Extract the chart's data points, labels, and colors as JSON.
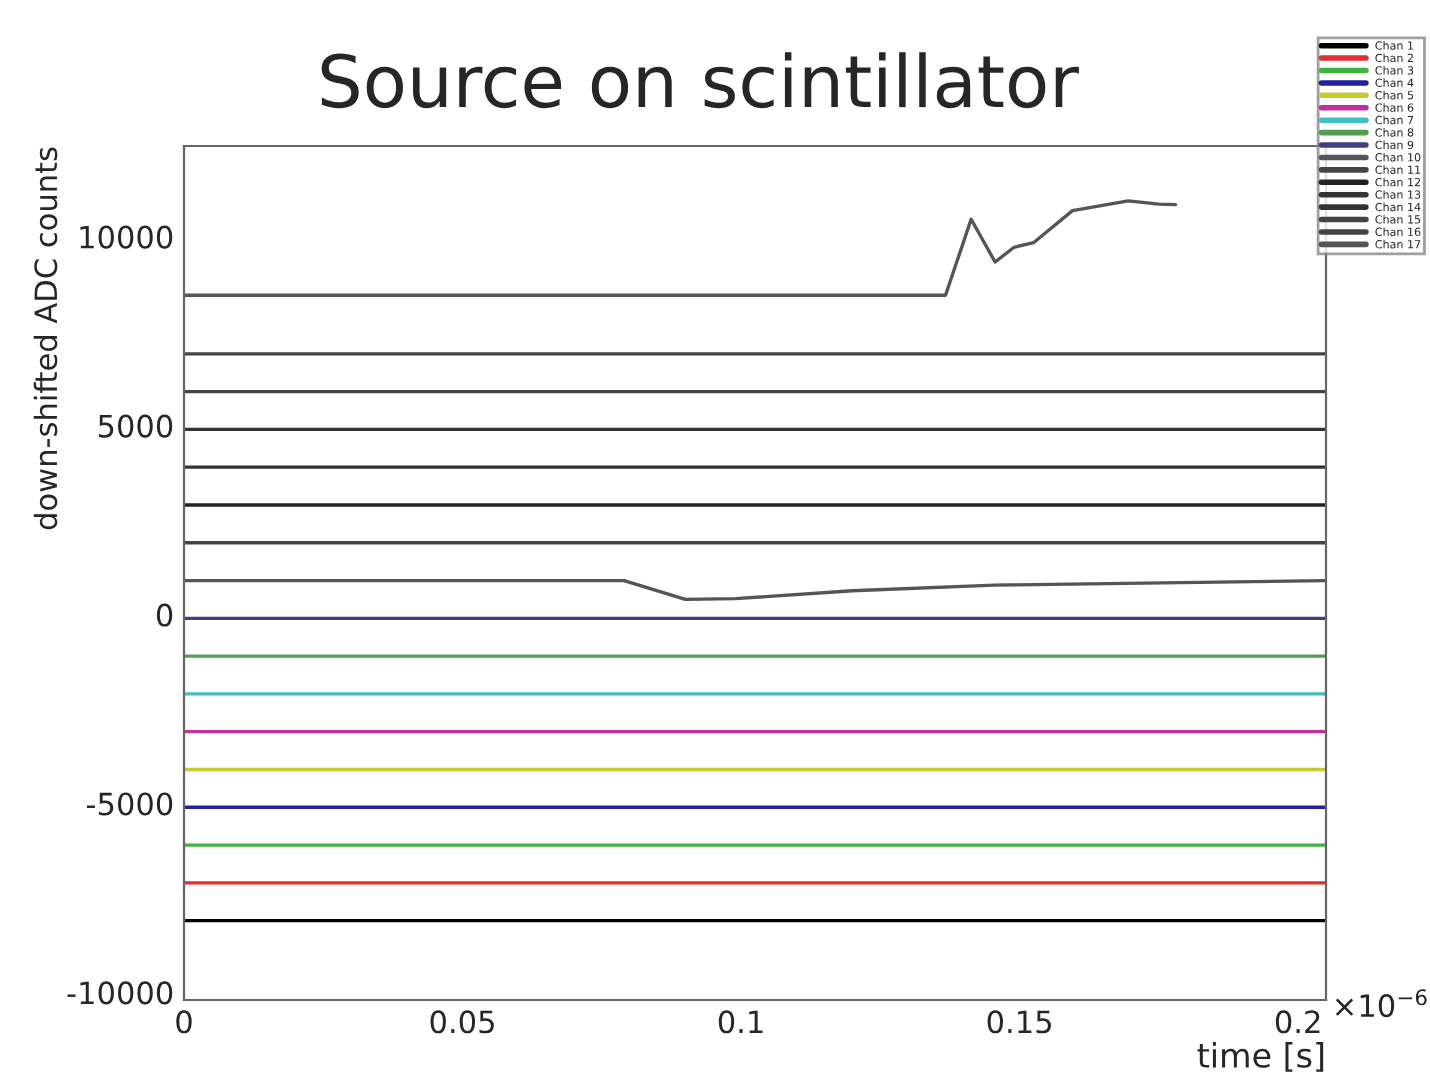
{
  "chart_data": {
    "type": "line",
    "title": "Source on scintillator",
    "xlabel": "time [s]",
    "ylabel": "down-shifted ADC counts",
    "annotations": [
      "×10$^{−6}$"
    ],
    "xlim": [
      0,
      0.205
    ],
    "xticks": [
      0,
      0.05,
      0.1,
      0.15,
      0.2
    ],
    "ylim": [
      -10200,
      12400
    ],
    "yticks": [
      -10000,
      -5000,
      0,
      5000,
      10000
    ],
    "grid": false,
    "legend": "top right",
    "marker": "none",
    "line_style": "solid",
    "series": [
      {
        "name": "Chan 1",
        "color": "#000000",
        "x": [
          0,
          0.205
        ],
        "values": [
          -8100,
          -8100
        ]
      },
      {
        "name": "Chan 2",
        "color": "#e03030",
        "x": [
          0,
          0.205
        ],
        "values": [
          -7100,
          -7100
        ]
      },
      {
        "name": "Chan 3",
        "color": "#40b040",
        "x": [
          0,
          0.205
        ],
        "values": [
          -6100,
          -6100
        ]
      },
      {
        "name": "Chan 4",
        "color": "#2020a0",
        "x": [
          0,
          0.205
        ],
        "values": [
          -5100,
          -5100
        ]
      },
      {
        "name": "Chan 5",
        "color": "#c8c830",
        "x": [
          0,
          0.205
        ],
        "values": [
          -4100,
          -4100
        ]
      },
      {
        "name": "Chan 6",
        "color": "#c030a0",
        "x": [
          0,
          0.205
        ],
        "values": [
          -3100,
          -3100
        ]
      },
      {
        "name": "Chan 7",
        "color": "#40c0c0",
        "x": [
          0,
          0.205
        ],
        "values": [
          -2100,
          -2100
        ]
      },
      {
        "name": "Chan 8",
        "color": "#50a050",
        "x": [
          0,
          0.205
        ],
        "values": [
          -1100,
          -1100
        ]
      },
      {
        "name": "Chan 9",
        "color": "#404080",
        "x": [
          0,
          0.205
        ],
        "values": [
          -100,
          -100
        ]
      },
      {
        "name": "Chan 10",
        "color": "#555555",
        "x": [
          0,
          0.079,
          0.09,
          0.099,
          0.12,
          0.1455,
          0.205
        ],
        "values": [
          900,
          900,
          400,
          420,
          630,
          780,
          900
        ]
      },
      {
        "name": "Chan 11",
        "color": "#444444",
        "x": [
          0,
          0.205
        ],
        "values": [
          1900,
          1900
        ]
      },
      {
        "name": "Chan 12",
        "color": "#222222",
        "x": [
          0,
          0.205
        ],
        "values": [
          2900,
          2900
        ]
      },
      {
        "name": "Chan 13",
        "color": "#333333",
        "x": [
          0,
          0.205
        ],
        "values": [
          3900,
          3900
        ]
      },
      {
        "name": "Chan 14",
        "color": "#333333",
        "x": [
          0,
          0.205
        ],
        "values": [
          4900,
          4900
        ]
      },
      {
        "name": "Chan 15",
        "color": "#444444",
        "x": [
          0,
          0.205
        ],
        "values": [
          5900,
          5900
        ]
      },
      {
        "name": "Chan 16",
        "color": "#444444",
        "x": [
          0,
          0.205
        ],
        "values": [
          6900,
          6900
        ]
      },
      {
        "name": "Chan 17",
        "color": "#555555",
        "x": [
          0,
          0.1367,
          0.1413,
          0.1456,
          0.149,
          0.1525,
          0.1595,
          0.1695,
          0.175,
          0.178
        ],
        "values": [
          8450,
          8450,
          10460,
          9330,
          9720,
          9840,
          10690,
          10950,
          10860,
          10850
        ]
      }
    ]
  }
}
